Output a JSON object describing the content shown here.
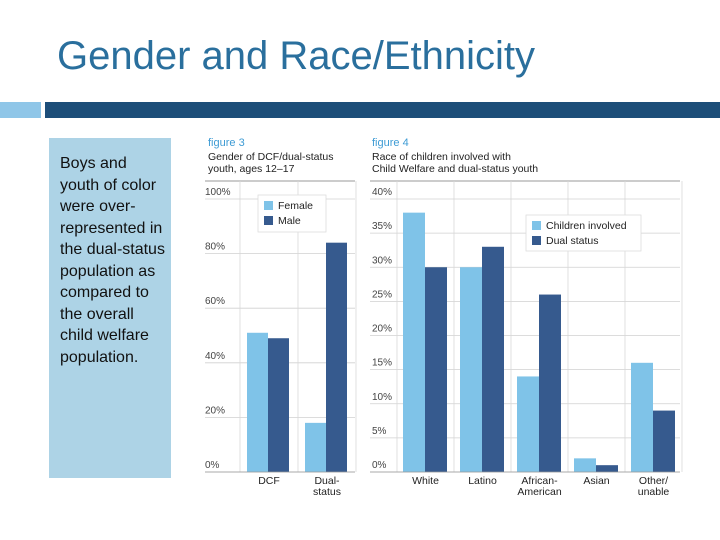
{
  "slide": {
    "title": "Gender and Race/Ethnicity",
    "side_text": "Boys and youth of color were over-represented in the dual-status population as compared to the overall child welfare population."
  },
  "colors": {
    "title": "#2a6f9d",
    "light_series": "#7fc3e8",
    "dark_series": "#365a8e",
    "panel": "#add3e6"
  },
  "chart_data": [
    {
      "figure_label": "figure 3",
      "title_lines": [
        "Gender of DCF/dual-status",
        "youth, ages 12–17"
      ],
      "type": "bar",
      "categories": [
        [
          "DCF"
        ],
        [
          "Dual-",
          "status"
        ]
      ],
      "series": [
        {
          "name": "Female",
          "values": [
            51,
            18
          ]
        },
        {
          "name": "Male",
          "values": [
            49,
            84
          ]
        }
      ],
      "yticks": [
        "0%",
        "20%",
        "40%",
        "60%",
        "80%",
        "100%"
      ],
      "ylim": [
        0,
        100
      ],
      "legend": "top-right"
    },
    {
      "figure_label": "figure 4",
      "title_lines": [
        "Race of children involved with",
        "Child Welfare and dual-status youth"
      ],
      "type": "bar",
      "categories": [
        [
          "White"
        ],
        [
          "Latino"
        ],
        [
          "African-",
          "American"
        ],
        [
          "Asian"
        ],
        [
          "Other/",
          "unable"
        ]
      ],
      "series": [
        {
          "name": "Children involved",
          "values": [
            38,
            30,
            14,
            2,
            16
          ]
        },
        {
          "name": "Dual status",
          "values": [
            30,
            33,
            26,
            1,
            9
          ]
        }
      ],
      "yticks": [
        "0%",
        "5%",
        "10%",
        "15%",
        "20%",
        "25%",
        "30%",
        "35%",
        "40%"
      ],
      "ylim": [
        0,
        40
      ],
      "legend": "top-right"
    }
  ]
}
